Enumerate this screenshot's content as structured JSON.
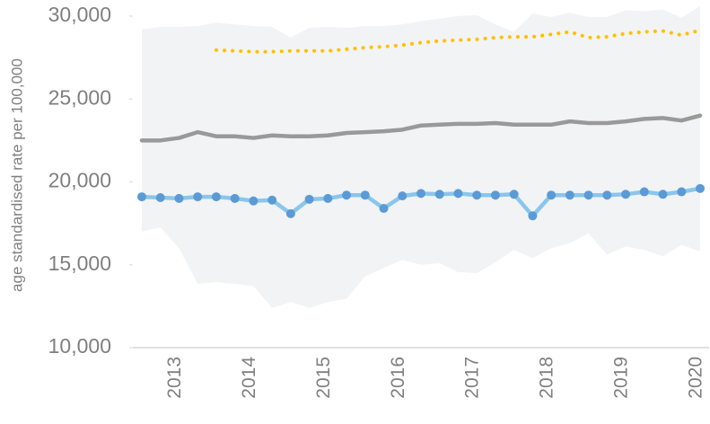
{
  "chart_data": {
    "type": "line",
    "y_label": "age standardised rate per 100,000",
    "categories": [
      null,
      null,
      "2013",
      null,
      null,
      null,
      "2014",
      null,
      null,
      null,
      "2015",
      null,
      null,
      null,
      "2016",
      null,
      null,
      null,
      "2017",
      null,
      null,
      null,
      "2018",
      null,
      null,
      null,
      "2019",
      null,
      null,
      null,
      "2020"
    ],
    "ylim": [
      10000,
      30700
    ],
    "yticks": [
      {
        "value": 10000,
        "label": "10,000"
      },
      {
        "value": 15000,
        "label": "15,000"
      },
      {
        "value": 20000,
        "label": "20,000"
      },
      {
        "value": 25000,
        "label": "25,000"
      },
      {
        "value": 30000,
        "label": "30,000"
      }
    ],
    "band": {
      "color": "#f2f3f4",
      "upper": [
        29200,
        29350,
        29350,
        29400,
        29600,
        29500,
        29400,
        29350,
        28700,
        29300,
        29350,
        29300,
        29400,
        29400,
        29500,
        29700,
        29850,
        30000,
        30050,
        29500,
        29050,
        30150,
        29950,
        30200,
        29950,
        29950,
        30350,
        30300,
        30400,
        29900,
        30600
      ],
      "lower": [
        17000,
        17250,
        16000,
        13850,
        13950,
        13850,
        13700,
        12400,
        12750,
        12400,
        12750,
        12950,
        14300,
        14800,
        15300,
        15000,
        15100,
        14550,
        14500,
        15150,
        15900,
        15400,
        16000,
        16300,
        16900,
        15600,
        16100,
        15900,
        15500,
        16200,
        15800
      ]
    },
    "series": [
      {
        "color": "#999999",
        "dash": "solid",
        "markers": false,
        "values": [
          22500,
          22500,
          22650,
          23000,
          22750,
          22750,
          22650,
          22800,
          22750,
          22750,
          22800,
          22950,
          23000,
          23050,
          23150,
          23400,
          23450,
          23500,
          23500,
          23550,
          23450,
          23450,
          23450,
          23650,
          23550,
          23550,
          23650,
          23800,
          23850,
          23700,
          24000
        ]
      },
      {
        "color": "#ffc000",
        "dash": "dotted",
        "markers": false,
        "values": [
          null,
          null,
          null,
          null,
          27950,
          27900,
          27850,
          27850,
          27900,
          27900,
          27900,
          28000,
          28100,
          28150,
          28250,
          28400,
          28500,
          28550,
          28600,
          28700,
          28750,
          28750,
          28900,
          29050,
          28700,
          28750,
          28950,
          29050,
          29100,
          28850,
          29150
        ]
      },
      {
        "color": "#8ac6ec",
        "marker_color": "#5b9bd5",
        "dash": "solid",
        "markers": true,
        "values": [
          19100,
          19050,
          19000,
          19100,
          19100,
          19000,
          18850,
          18900,
          18080,
          18950,
          19000,
          19200,
          19200,
          18400,
          19150,
          19300,
          19250,
          19300,
          19200,
          19200,
          19250,
          17950,
          19200,
          19200,
          19200,
          19200,
          19250,
          19400,
          19250,
          19400,
          19600
        ]
      }
    ]
  }
}
